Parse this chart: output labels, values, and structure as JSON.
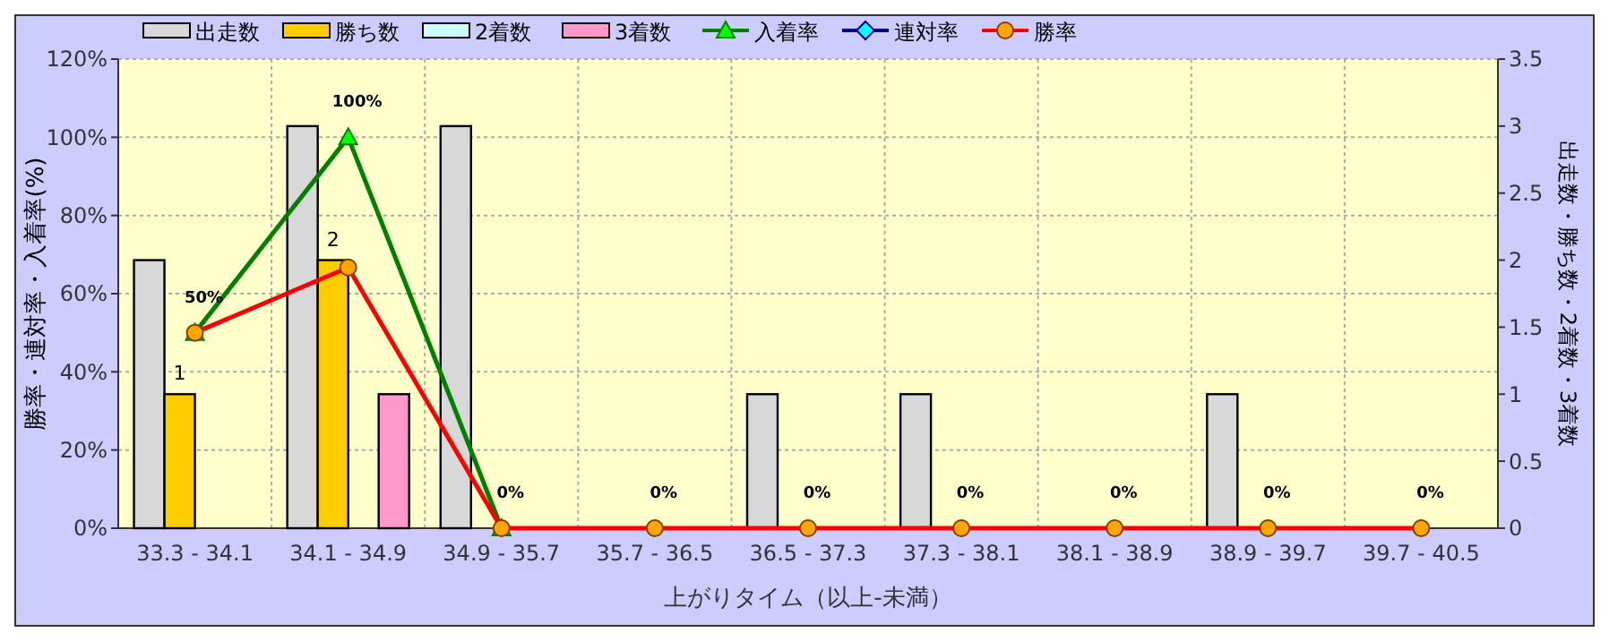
{
  "chart_data": {
    "type": "bar",
    "xlabel": "上がりタイム（以上-未満）",
    "ylabel": "勝率・連対率・入着率(%)",
    "y2label": "出走数・勝ち数・2着数・3着数",
    "categories": [
      "33.3 - 34.1",
      "34.1 - 34.9",
      "34.9 - 35.7",
      "35.7 - 36.5",
      "36.5 - 37.3",
      "37.3 - 38.1",
      "38.1 - 38.9",
      "38.9 - 39.7",
      "39.7 - 40.5"
    ],
    "series": [
      {
        "name": "出走数",
        "axis": "y2",
        "color": "#d8d8d8",
        "values": [
          2,
          3,
          3,
          0,
          1,
          1,
          0,
          1,
          0
        ]
      },
      {
        "name": "勝ち数",
        "axis": "y2",
        "color": "#ffcc00",
        "values": [
          1,
          2,
          0,
          0,
          0,
          0,
          0,
          0,
          0
        ],
        "value_labels": [
          "1",
          "2",
          null,
          null,
          null,
          null,
          null,
          null,
          null
        ]
      },
      {
        "name": "2着数",
        "axis": "y2",
        "color": "#ccffff",
        "values": [
          0,
          0,
          0,
          0,
          0,
          0,
          0,
          0,
          0
        ]
      },
      {
        "name": "3着数",
        "axis": "y2",
        "color": "#ff99cc",
        "values": [
          0,
          1,
          0,
          0,
          0,
          0,
          0,
          0,
          0
        ]
      },
      {
        "name": "入着率",
        "type": "line",
        "color": "#008000",
        "marker": "triangle",
        "values": [
          50,
          100,
          0,
          null,
          null,
          null,
          null,
          null,
          null
        ],
        "value_labels": [
          "50%",
          "100%",
          "0%",
          null,
          null,
          null,
          null,
          null,
          null
        ]
      },
      {
        "name": "連対率",
        "type": "line",
        "color": "#000080",
        "marker": "diamond",
        "values": [
          null,
          null,
          null,
          null,
          null,
          null,
          null,
          null,
          null
        ]
      },
      {
        "name": "勝率",
        "type": "line",
        "color": "#ff0000",
        "marker": "circle",
        "values": [
          50,
          66.7,
          0,
          0,
          0,
          0,
          0,
          0,
          0
        ],
        "value_labels": [
          null,
          null,
          null,
          "0%",
          "0%",
          "0%",
          "0%",
          "0%",
          "0%"
        ]
      }
    ],
    "ylim": [
      0,
      120
    ],
    "yticks": [
      {
        "value": 0,
        "label": "0%"
      },
      {
        "value": 20,
        "label": "20%"
      },
      {
        "value": 40,
        "label": "40%"
      },
      {
        "value": 60,
        "label": "60%"
      },
      {
        "value": 80,
        "label": "80%"
      },
      {
        "value": 100,
        "label": "100%"
      },
      {
        "value": 120,
        "label": "120%"
      }
    ],
    "y2lim": [
      0,
      3.5
    ],
    "y2ticks": [
      0,
      0.5,
      1,
      1.5,
      2,
      2.5,
      3,
      3.5
    ],
    "grid": true,
    "legend": "top left"
  }
}
